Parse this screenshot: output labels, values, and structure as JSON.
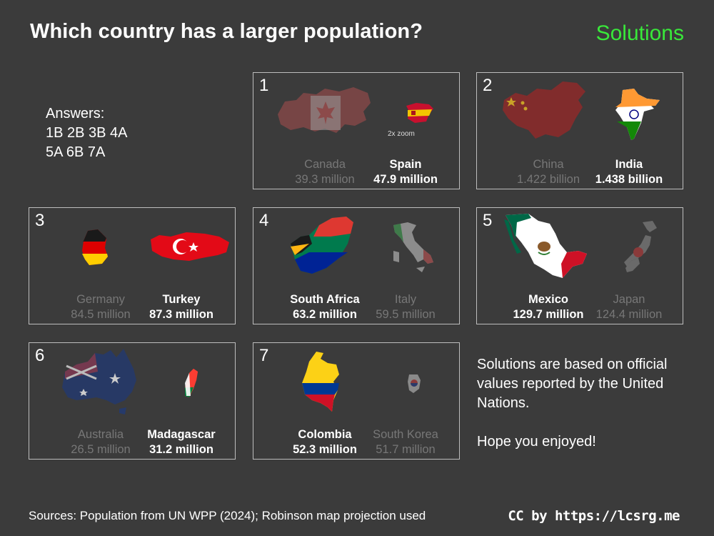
{
  "title": "Which country has a larger population?",
  "solutions_label": "Solutions",
  "answers": {
    "heading": "Answers:",
    "line1": "1B 2B 3B 4A",
    "line2": "5A 6B 7A"
  },
  "panels": [
    {
      "number": "1",
      "left": {
        "name": "Canada",
        "pop": "39.3 million"
      },
      "right": {
        "name": "Spain",
        "pop": "47.9 million"
      },
      "note": "2x zoom",
      "winner": "right"
    },
    {
      "number": "2",
      "left": {
        "name": "China",
        "pop": "1.422 billion"
      },
      "right": {
        "name": "India",
        "pop": "1.438 billion"
      },
      "winner": "right"
    },
    {
      "number": "3",
      "left": {
        "name": "Germany",
        "pop": "84.5 million"
      },
      "right": {
        "name": "Turkey",
        "pop": "87.3 million"
      },
      "winner": "right"
    },
    {
      "number": "4",
      "left": {
        "name": "South Africa",
        "pop": "63.2 million"
      },
      "right": {
        "name": "Italy",
        "pop": "59.5 million"
      },
      "winner": "left"
    },
    {
      "number": "5",
      "left": {
        "name": "Mexico",
        "pop": "129.7 million"
      },
      "right": {
        "name": "Japan",
        "pop": "124.4 million"
      },
      "winner": "left"
    },
    {
      "number": "6",
      "left": {
        "name": "Australia",
        "pop": "26.5 million"
      },
      "right": {
        "name": "Madagascar",
        "pop": "31.2 million"
      },
      "winner": "right"
    },
    {
      "number": "7",
      "left": {
        "name": "Colombia",
        "pop": "52.3 million"
      },
      "right": {
        "name": "South Korea",
        "pop": "51.7 million"
      },
      "winner": "left"
    }
  ],
  "notes": {
    "line1": "Solutions are based on official values reported by the United Nations.",
    "line2": "Hope you enjoyed!"
  },
  "sources": "Sources: Population from UN WPP (2024); Robinson map projection used",
  "credit": "CC by https://lcsrg.me",
  "colors": {
    "background": "#3b3b3b",
    "accent": "#39e83a",
    "dim_text": "#777777",
    "border": "#bdbdbd"
  }
}
